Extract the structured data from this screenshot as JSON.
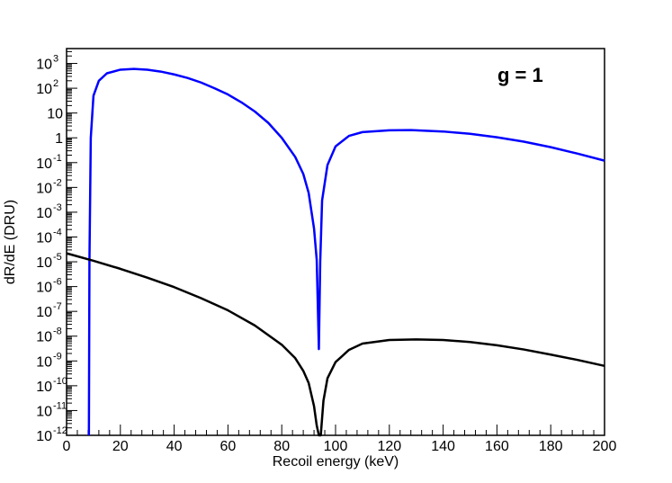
{
  "chart_data": {
    "type": "line",
    "xlabel": "Recoil energy (keV)",
    "ylabel": "dR/dE (DRU)",
    "annotation": "g = 1",
    "xlim": [
      0,
      200
    ],
    "ylim_log10": [
      -12,
      3.6
    ],
    "log_y": true,
    "grid": false,
    "x_ticks": [
      "0",
      "20",
      "40",
      "60",
      "80",
      "100",
      "120",
      "140",
      "160",
      "180",
      "200"
    ],
    "y_ticks": [
      {
        "base": "10",
        "exp": "-12",
        "value": 1e-12
      },
      {
        "base": "10",
        "exp": "-11",
        "value": 1e-11
      },
      {
        "base": "10",
        "exp": "-10",
        "value": 1e-10
      },
      {
        "base": "10",
        "exp": "-9",
        "value": 1e-09
      },
      {
        "base": "10",
        "exp": "-8",
        "value": 1e-08
      },
      {
        "base": "10",
        "exp": "-7",
        "value": 1e-07
      },
      {
        "base": "10",
        "exp": "-6",
        "value": 1e-06
      },
      {
        "base": "10",
        "exp": "-5",
        "value": 1e-05
      },
      {
        "base": "10",
        "exp": "-4",
        "value": 0.0001
      },
      {
        "base": "10",
        "exp": "-3",
        "value": 0.001
      },
      {
        "base": "10",
        "exp": "-2",
        "value": 0.01
      },
      {
        "base": "10",
        "exp": "-1",
        "value": 0.1
      },
      {
        "base": "1",
        "exp": "",
        "value": 1
      },
      {
        "base": "10",
        "exp": "",
        "value": 10
      },
      {
        "base": "10",
        "exp": "2",
        "value": 100
      },
      {
        "base": "10",
        "exp": "3",
        "value": 1000
      }
    ],
    "series": [
      {
        "color": "#0000ff",
        "points": [
          [
            8.3,
            1e-12
          ],
          [
            8.5,
            1e-05
          ],
          [
            9,
            1
          ],
          [
            10,
            50
          ],
          [
            12,
            200
          ],
          [
            15,
            400
          ],
          [
            20,
            560
          ],
          [
            25,
            600
          ],
          [
            30,
            560
          ],
          [
            35,
            470
          ],
          [
            40,
            360
          ],
          [
            45,
            260
          ],
          [
            50,
            170
          ],
          [
            55,
            100
          ],
          [
            60,
            56
          ],
          [
            65,
            27
          ],
          [
            70,
            11.5
          ],
          [
            75,
            4.0
          ],
          [
            80,
            1.0
          ],
          [
            85,
            0.17
          ],
          [
            88,
            0.035
          ],
          [
            90,
            0.006
          ],
          [
            92,
            0.00022
          ],
          [
            93,
            1.2e-05
          ],
          [
            93.8,
            3e-09
          ],
          [
            94.3,
            1e-05
          ],
          [
            95,
            0.003
          ],
          [
            97,
            0.08
          ],
          [
            100,
            0.45
          ],
          [
            105,
            1.2
          ],
          [
            110,
            1.7
          ],
          [
            120,
            2.0
          ],
          [
            128,
            2.05
          ],
          [
            140,
            1.8
          ],
          [
            150,
            1.45
          ],
          [
            160,
            1.05
          ],
          [
            170,
            0.7
          ],
          [
            180,
            0.42
          ],
          [
            190,
            0.23
          ],
          [
            200,
            0.12
          ]
        ]
      },
      {
        "color": "#000000",
        "points": [
          [
            0,
            2.2e-05
          ],
          [
            10,
            1.1e-05
          ],
          [
            20,
            5.2e-06
          ],
          [
            30,
            2.3e-06
          ],
          [
            40,
            9.5e-07
          ],
          [
            50,
            3.4e-07
          ],
          [
            60,
            1.1e-07
          ],
          [
            70,
            2.7e-08
          ],
          [
            80,
            4.5e-09
          ],
          [
            85,
            1.3e-09
          ],
          [
            88,
            4e-10
          ],
          [
            90,
            1.3e-10
          ],
          [
            92,
            1.5e-11
          ],
          [
            93,
            2.5e-12
          ],
          [
            93.8,
            1e-12
          ],
          [
            94.5,
            1e-12
          ],
          [
            95.5,
            2.5e-11
          ],
          [
            97,
            2e-10
          ],
          [
            100,
            9e-10
          ],
          [
            105,
            2.8e-09
          ],
          [
            110,
            5e-09
          ],
          [
            120,
            7e-09
          ],
          [
            130,
            7.4e-09
          ],
          [
            140,
            7e-09
          ],
          [
            150,
            5.8e-09
          ],
          [
            160,
            4.3e-09
          ],
          [
            170,
            2.9e-09
          ],
          [
            180,
            1.8e-09
          ],
          [
            190,
            1.1e-09
          ],
          [
            200,
            6.3e-10
          ]
        ]
      }
    ]
  }
}
